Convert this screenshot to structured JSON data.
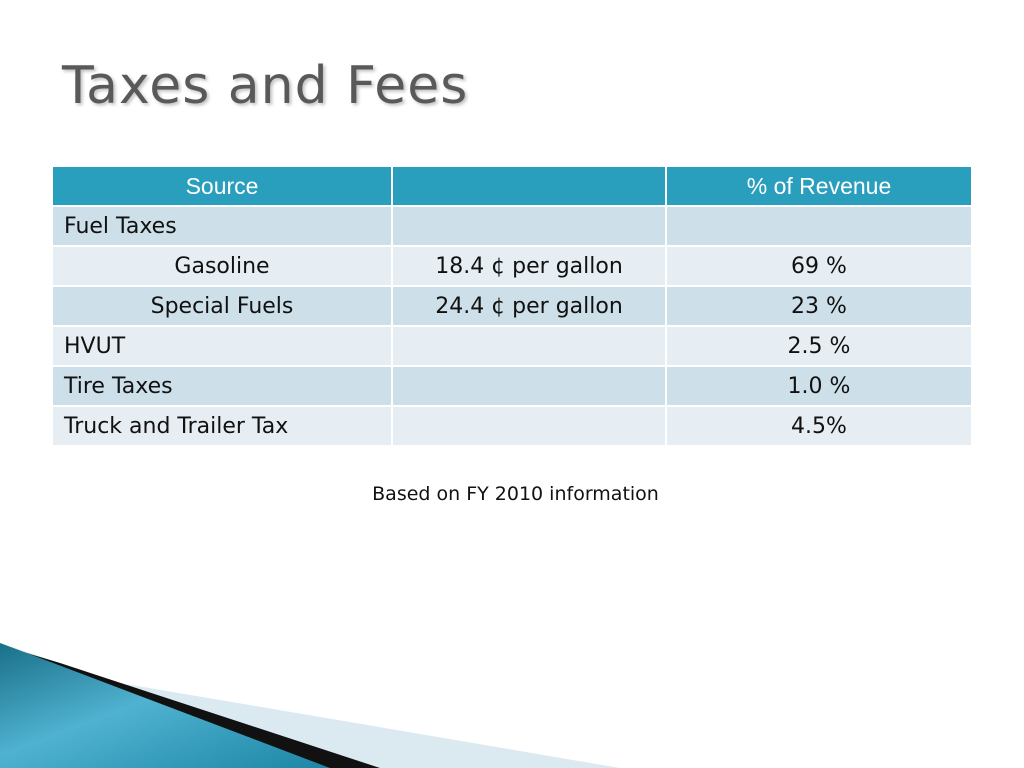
{
  "slide": {
    "title": "Taxes and Fees",
    "caption": "Based on FY 2010 information"
  },
  "table": {
    "headers": [
      "Source",
      "",
      "% of Revenue"
    ],
    "rows": [
      [
        "Fuel Taxes",
        "",
        ""
      ],
      [
        "Gasoline",
        "18.4 ¢ per gallon",
        "69 %"
      ],
      [
        "Special Fuels",
        "24.4 ¢ per gallon",
        "23 %"
      ],
      [
        "HVUT",
        "",
        "2.5 %"
      ],
      [
        "Tire Taxes",
        "",
        "1.0 %"
      ],
      [
        "Truck and Trailer Tax",
        "",
        "4.5%"
      ]
    ]
  },
  "colors": {
    "header": "#2a9fbd",
    "row_dark": "#cddfe8",
    "row_light": "#e6eef4",
    "title": "#595959"
  }
}
